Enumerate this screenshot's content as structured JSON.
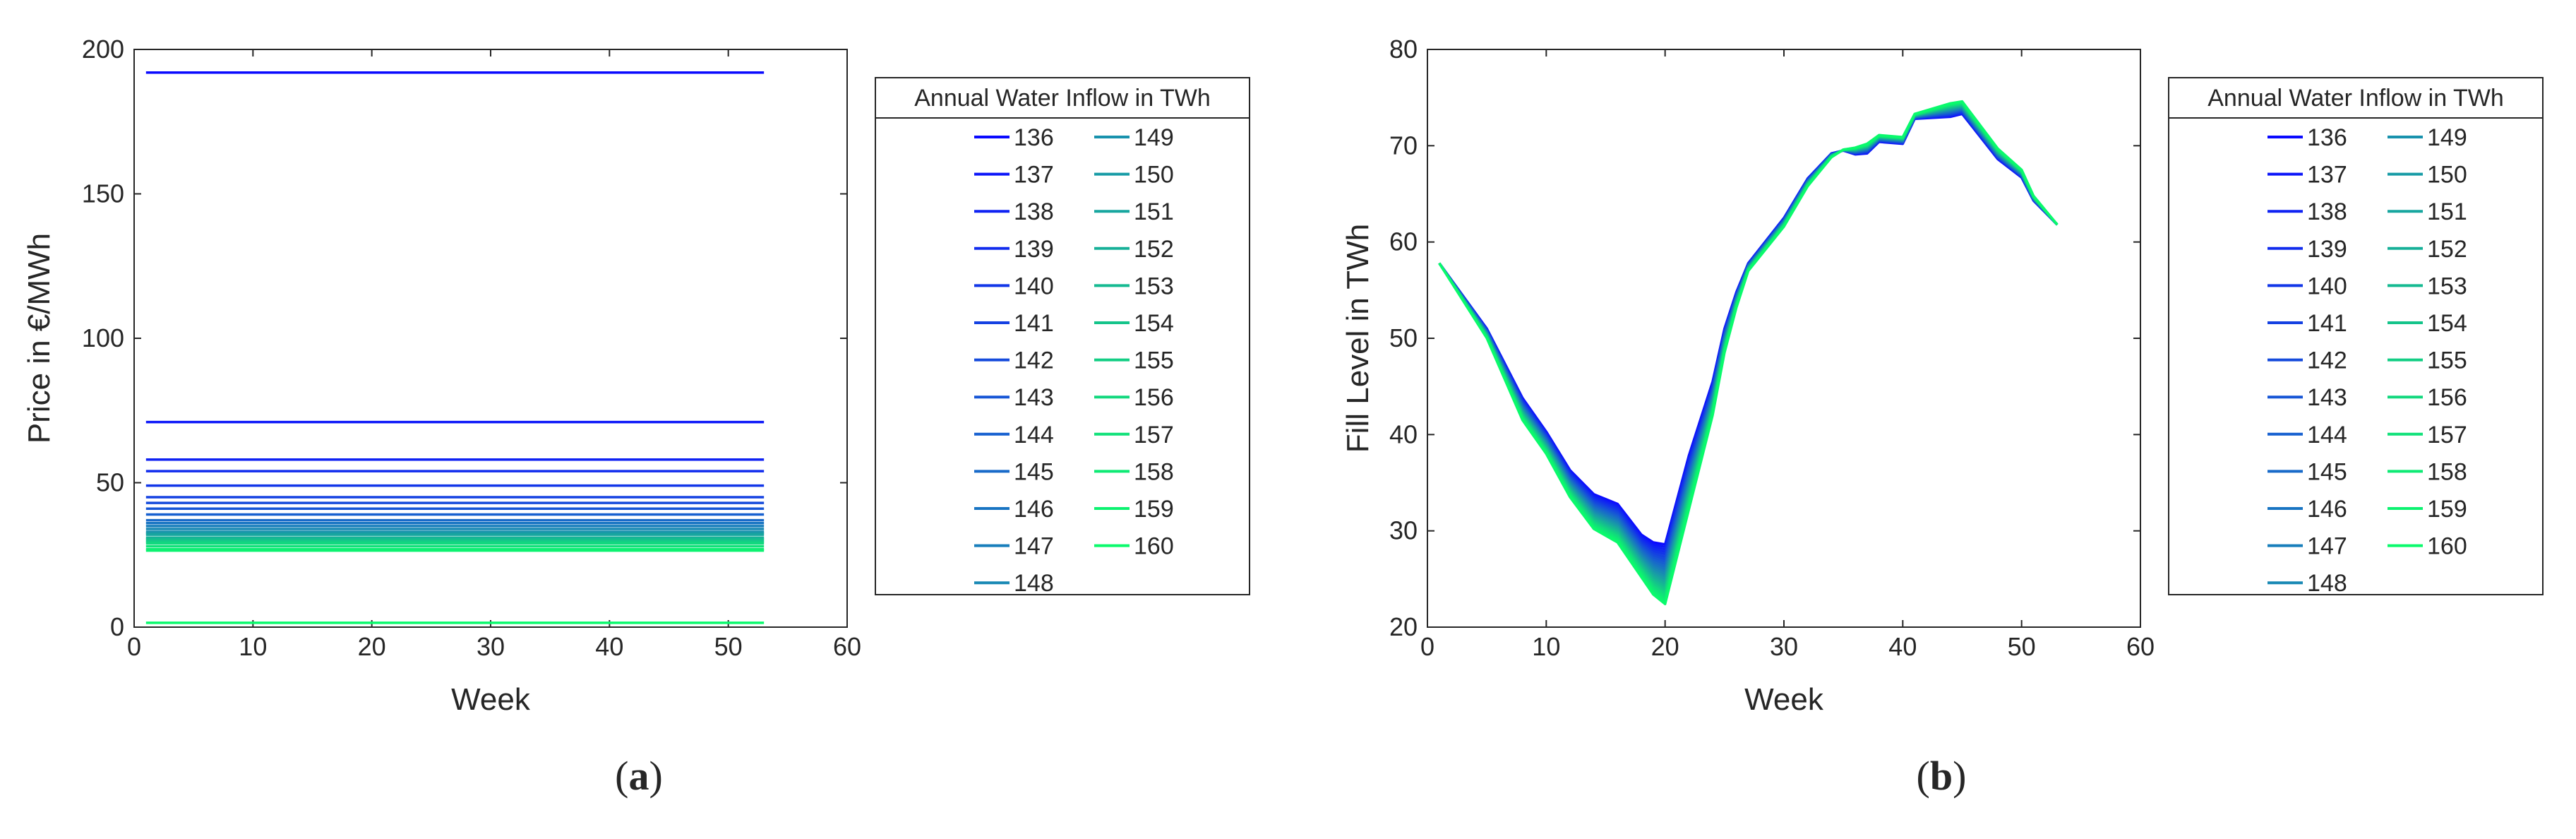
{
  "chart_data": [
    {
      "type": "line",
      "caption_letter": "a",
      "xlabel": "Week",
      "ylabel": "Price in €/MWh",
      "xlim": [
        0,
        60
      ],
      "ylim": [
        0,
        200
      ],
      "xticks": [
        0,
        10,
        20,
        30,
        40,
        50,
        60
      ],
      "yticks": [
        0,
        50,
        100,
        150,
        200
      ],
      "x": [
        1,
        53
      ],
      "legend_title": "Annual Water Inflow in TWh",
      "series": [
        {
          "name": "136",
          "color": "#0a0aff",
          "y": 192
        },
        {
          "name": "137",
          "color": "#0d17f9",
          "y": 71
        },
        {
          "name": "138",
          "color": "#0f22f3",
          "y": 58
        },
        {
          "name": "139",
          "color": "#112cee",
          "y": 54
        },
        {
          "name": "140",
          "color": "#1236e8",
          "y": 49
        },
        {
          "name": "141",
          "color": "#1441e2",
          "y": 45
        },
        {
          "name": "142",
          "color": "#154bdc",
          "y": 43
        },
        {
          "name": "143",
          "color": "#1656d6",
          "y": 41
        },
        {
          "name": "144",
          "color": "#1760d0",
          "y": 39
        },
        {
          "name": "145",
          "color": "#186ac9",
          "y": 37
        },
        {
          "name": "146",
          "color": "#1874c2",
          "y": 36
        },
        {
          "name": "147",
          "color": "#187ebb",
          "y": 35
        },
        {
          "name": "148",
          "color": "#1888b4",
          "y": 34
        },
        {
          "name": "149",
          "color": "#1892ad",
          "y": 33
        },
        {
          "name": "150",
          "color": "#189ca6",
          "y": 32.5
        },
        {
          "name": "151",
          "color": "#17a69f",
          "y": 32
        },
        {
          "name": "152",
          "color": "#16b098",
          "y": 31
        },
        {
          "name": "153",
          "color": "#15ba91",
          "y": 30.5
        },
        {
          "name": "154",
          "color": "#14c48a",
          "y": 30
        },
        {
          "name": "155",
          "color": "#13ce84",
          "y": 29.5
        },
        {
          "name": "156",
          "color": "#12d87e",
          "y": 29
        },
        {
          "name": "157",
          "color": "#10e179",
          "y": 28
        },
        {
          "name": "158",
          "color": "#0eea74",
          "y": 27
        },
        {
          "name": "159",
          "color": "#0cf270",
          "y": 26.5
        },
        {
          "name": "160",
          "color": "#0afa6c",
          "y": 1.5
        }
      ]
    },
    {
      "type": "line",
      "caption_letter": "b",
      "xlabel": "Week",
      "ylabel": "Fill Level in TWh",
      "xlim": [
        0,
        60
      ],
      "ylim": [
        20,
        80
      ],
      "xticks": [
        0,
        10,
        20,
        30,
        40,
        50,
        60
      ],
      "yticks": [
        20,
        30,
        40,
        50,
        60,
        70,
        80
      ],
      "x": [
        1,
        5,
        8,
        10,
        12,
        14,
        16,
        18,
        19,
        20,
        22,
        24,
        25,
        26,
        27,
        30,
        32,
        34,
        35,
        36,
        37,
        38,
        40,
        41,
        44,
        45,
        48,
        50,
        51,
        53
      ],
      "envelope_upper": [
        57.8,
        51,
        43.8,
        40.3,
        36.3,
        33.8,
        32.8,
        29.6,
        28.8,
        28.6,
        37.8,
        45.5,
        51,
        54.8,
        57.8,
        62.5,
        66.6,
        69.2,
        69.5,
        69.1,
        69.2,
        70.4,
        70.2,
        72.8,
        73,
        73.3,
        68.6,
        66.7,
        64.3,
        61.8
      ],
      "envelope_lower": [
        57.8,
        50,
        41.5,
        38,
        33.5,
        30.2,
        28.8,
        25.2,
        23.4,
        22.4,
        32.2,
        42,
        48.5,
        53.2,
        57,
        61.6,
        65.8,
        68.8,
        69.6,
        69.8,
        70.2,
        71.1,
        70.9,
        73.3,
        74.4,
        74.6,
        69.7,
        67.5,
        64.8,
        61.8
      ],
      "legend_title": "Annual Water Inflow in TWh",
      "series": [
        {
          "name": "136",
          "color": "#0a0aff"
        },
        {
          "name": "137",
          "color": "#0d17f9"
        },
        {
          "name": "138",
          "color": "#0f22f3"
        },
        {
          "name": "139",
          "color": "#112cee"
        },
        {
          "name": "140",
          "color": "#1236e8"
        },
        {
          "name": "141",
          "color": "#1441e2"
        },
        {
          "name": "142",
          "color": "#154bdc"
        },
        {
          "name": "143",
          "color": "#1656d6"
        },
        {
          "name": "144",
          "color": "#1760d0"
        },
        {
          "name": "145",
          "color": "#186ac9"
        },
        {
          "name": "146",
          "color": "#1874c2"
        },
        {
          "name": "147",
          "color": "#187ebb"
        },
        {
          "name": "148",
          "color": "#1888b4"
        },
        {
          "name": "149",
          "color": "#1892ad"
        },
        {
          "name": "150",
          "color": "#189ca6"
        },
        {
          "name": "151",
          "color": "#17a69f"
        },
        {
          "name": "152",
          "color": "#16b098"
        },
        {
          "name": "153",
          "color": "#15ba91"
        },
        {
          "name": "154",
          "color": "#14c48a"
        },
        {
          "name": "155",
          "color": "#13ce84"
        },
        {
          "name": "156",
          "color": "#12d87e"
        },
        {
          "name": "157",
          "color": "#10e179"
        },
        {
          "name": "158",
          "color": "#0eea74"
        },
        {
          "name": "159",
          "color": "#0cf270"
        },
        {
          "name": "160",
          "color": "#0afa6c"
        }
      ]
    }
  ]
}
